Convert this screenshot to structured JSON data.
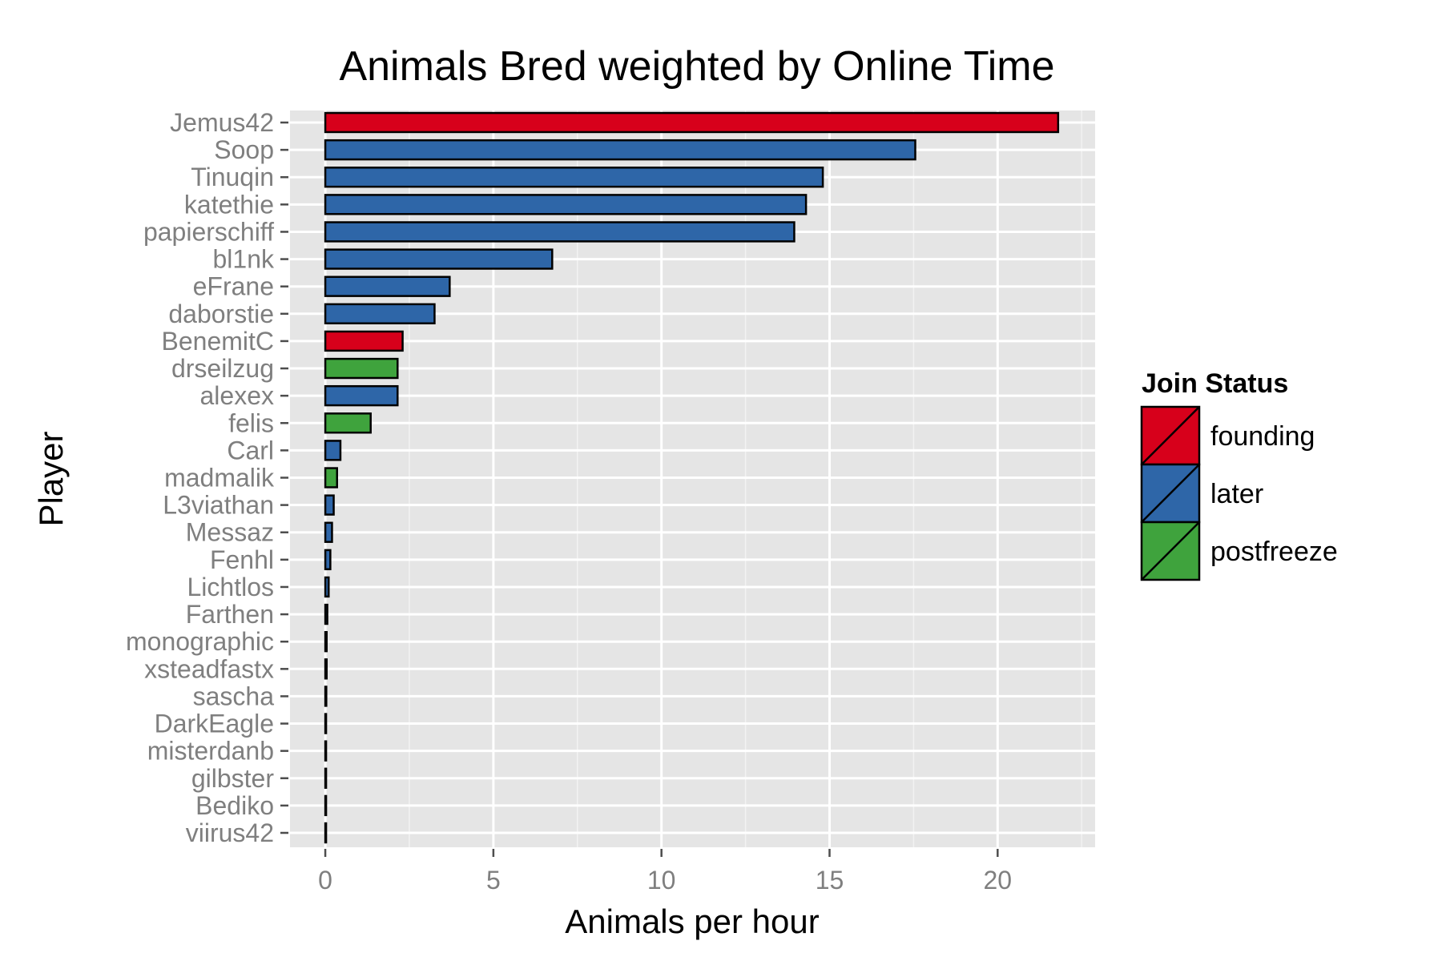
{
  "chart_data": {
    "type": "bar",
    "orientation": "horizontal",
    "title": "Animals Bred weighted by Online Time",
    "xlabel": "Animals per hour",
    "ylabel": "Player",
    "xlim": [
      -1.05,
      22.9
    ],
    "xticks": [
      0,
      5,
      10,
      15,
      20
    ],
    "grid": true,
    "legend_placement": "right",
    "legend": {
      "title": "Join Status",
      "entries": [
        {
          "label": "founding",
          "color": "#d7001b"
        },
        {
          "label": "later",
          "color": "#2e66a8"
        },
        {
          "label": "postfreeze",
          "color": "#3fa33d"
        }
      ]
    },
    "categories": [
      "Jemus42",
      "Soop",
      "Tinuqin",
      "katethie",
      "papierschiff",
      "bl1nk",
      "eFrane",
      "daborstie",
      "BenemitC",
      "drseilzug",
      "alexex",
      "felis",
      "Carl",
      "madmalik",
      "L3viathan",
      "Messaz",
      "Fenhl",
      "Lichtlos",
      "Farthen",
      "monographic",
      "xsteadfastx",
      "sascha",
      "DarkEagle",
      "misterdanb",
      "gilbster",
      "Bediko",
      "viirus42"
    ],
    "values": [
      21.8,
      17.55,
      14.8,
      14.3,
      13.95,
      6.75,
      3.7,
      3.25,
      2.3,
      2.15,
      2.15,
      1.35,
      0.45,
      0.35,
      0.25,
      0.2,
      0.15,
      0.1,
      0.06,
      0.04,
      0.04,
      0.03,
      0.02,
      0.02,
      0.01,
      0.01,
      0.01
    ],
    "status": [
      "founding",
      "later",
      "later",
      "later",
      "later",
      "later",
      "later",
      "later",
      "founding",
      "postfreeze",
      "later",
      "postfreeze",
      "later",
      "postfreeze",
      "later",
      "later",
      "later",
      "later",
      "later",
      "later",
      "later",
      "later",
      "later",
      "later",
      "later",
      "later",
      "later"
    ]
  }
}
